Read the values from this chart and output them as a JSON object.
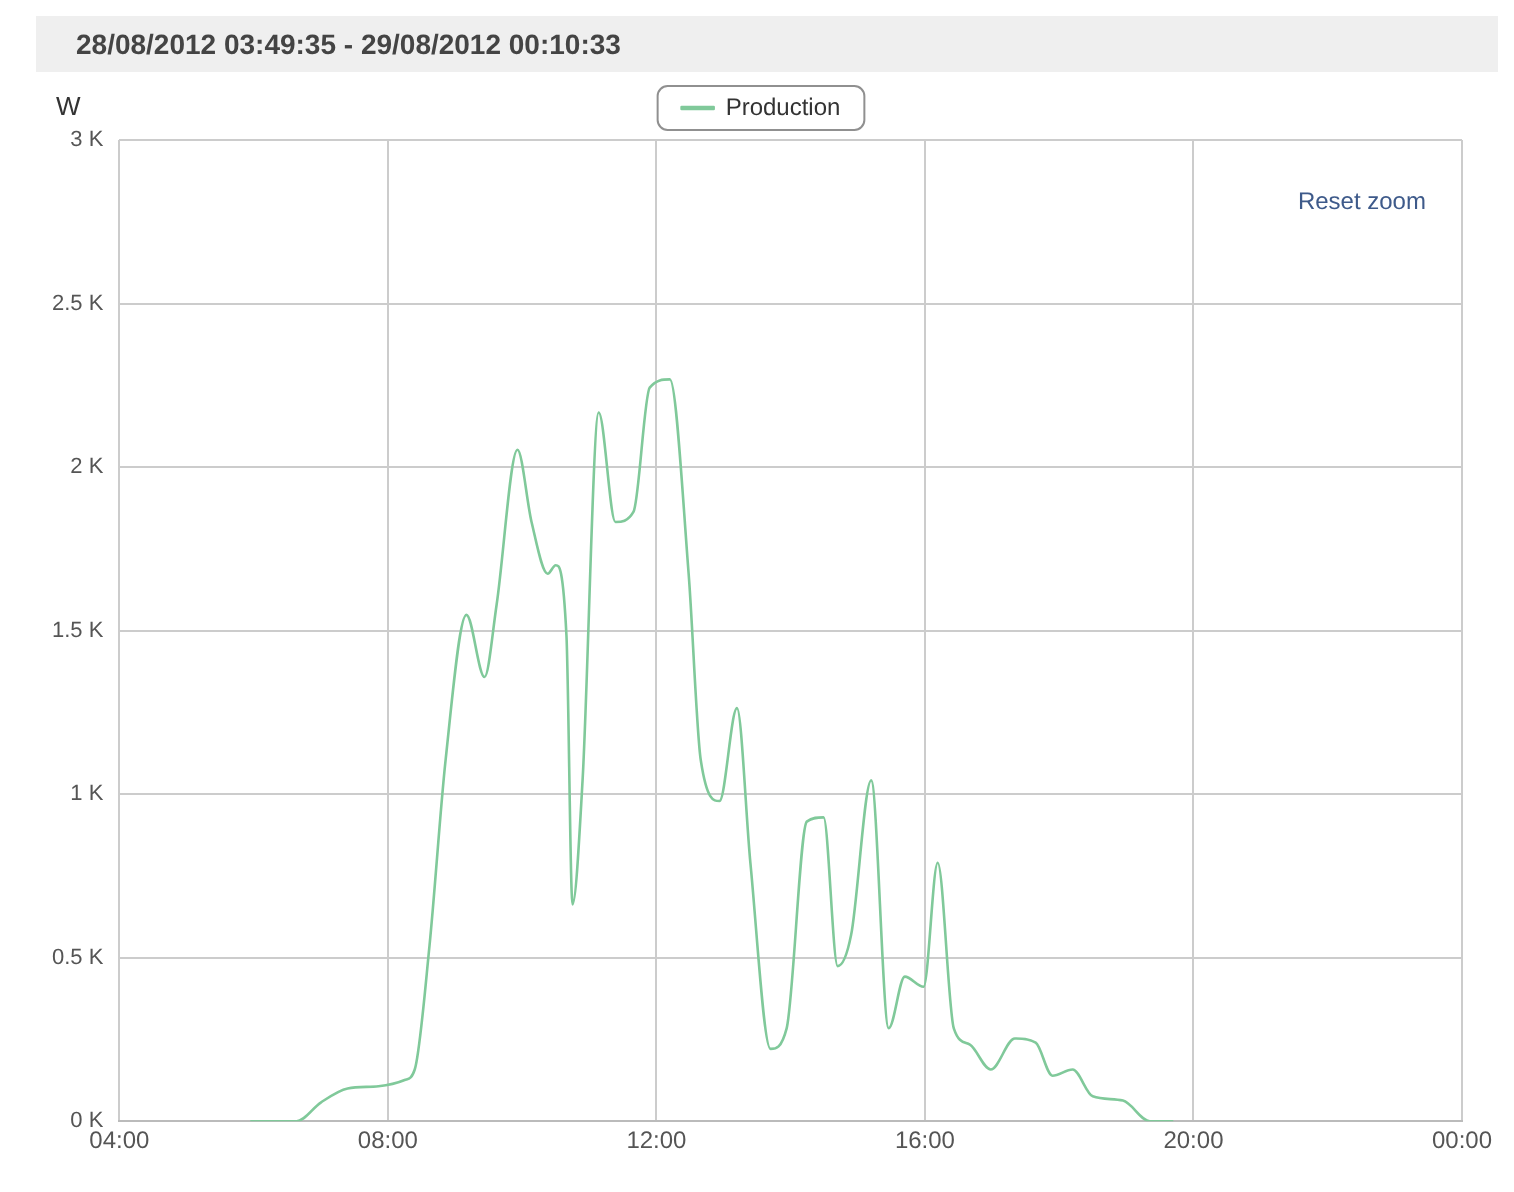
{
  "chart_data": {
    "type": "line",
    "title": "28/08/2012 03:49:35 - 29/08/2012 00:10:33",
    "ylabel": "W",
    "annotations": [
      "Reset zoom"
    ],
    "x": [
      5.95,
      6.64,
      7.0,
      7.4,
      7.86,
      8.25,
      8.4,
      8.62,
      8.86,
      9.17,
      9.44,
      9.62,
      9.93,
      10.14,
      10.38,
      10.5,
      10.66,
      10.75,
      10.9,
      11.14,
      11.39,
      11.66,
      11.9,
      12.2,
      12.48,
      12.66,
      12.94,
      13.2,
      13.4,
      13.7,
      13.94,
      14.24,
      14.49,
      14.7,
      14.9,
      15.2,
      15.46,
      15.7,
      15.98,
      16.19,
      16.43,
      16.67,
      16.98,
      17.34,
      17.65,
      17.9,
      18.2,
      18.5,
      18.95,
      19.35,
      19.7
    ],
    "series": [
      {
        "name": "Production",
        "color": "#80c99a",
        "values": [
          0,
          0,
          57,
          100,
          107,
          126,
          158,
          537,
          1105,
          1548,
          1358,
          1580,
          2053,
          1832,
          1674,
          1700,
          1485,
          663,
          1042,
          2167,
          1832,
          1864,
          2243,
          2268,
          1674,
          1105,
          979,
          1263,
          790,
          221,
          284,
          916,
          929,
          474,
          569,
          1042,
          284,
          442,
          411,
          790,
          284,
          234,
          158,
          253,
          240,
          139,
          158,
          76,
          63,
          0,
          0
        ]
      }
    ],
    "xlim": [
      4,
      24
    ],
    "xticks": [
      {
        "value": 4,
        "label": "04:00"
      },
      {
        "value": 8,
        "label": "08:00"
      },
      {
        "value": 12,
        "label": "12:00"
      },
      {
        "value": 16,
        "label": "16:00"
      },
      {
        "value": 20,
        "label": "20:00"
      },
      {
        "value": 24,
        "label": "00:00"
      }
    ],
    "ylim": [
      0,
      3000
    ],
    "yticks": [
      {
        "value": 0,
        "label": "0 K"
      },
      {
        "value": 500,
        "label": "0.5 K"
      },
      {
        "value": 1000,
        "label": "1 K"
      },
      {
        "value": 1500,
        "label": "1.5 K"
      },
      {
        "value": 2000,
        "label": "2 K"
      },
      {
        "value": 2500,
        "label": "2.5 K"
      },
      {
        "value": 3000,
        "label": "3 K"
      }
    ],
    "grid": true,
    "legend": "top",
    "marker": "none",
    "line_style": "solid"
  }
}
